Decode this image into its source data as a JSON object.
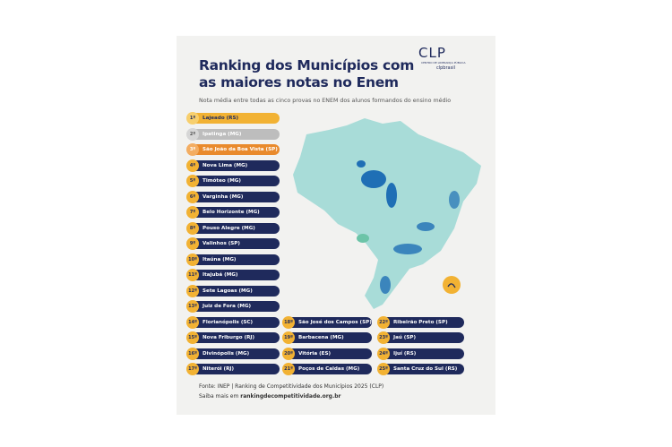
{
  "header": {
    "title_line1": "Ranking dos Municípios com",
    "title_line2": "as maiores notas no Enem",
    "subtitle": "Nota média entre todas as cinco provas no ENEM dos alunos formandos do ensino médio"
  },
  "logo": {
    "brand": "CLP",
    "tagline": "CENTRO DE LIDERANÇA PÚBLICA",
    "social": "clpbrasil"
  },
  "ranking": [
    {
      "rank": "1º",
      "name": "Lajeado (RS)"
    },
    {
      "rank": "2º",
      "name": "Ipatinga (MG)"
    },
    {
      "rank": "3º",
      "name": "São João da Boa Vista (SP)"
    },
    {
      "rank": "4º",
      "name": "Nova Lima (MG)"
    },
    {
      "rank": "5º",
      "name": "Timóteo (MG)"
    },
    {
      "rank": "6º",
      "name": "Varginha (MG)"
    },
    {
      "rank": "7º",
      "name": "Belo Horizonte (MG)"
    },
    {
      "rank": "8º",
      "name": "Pouso Alegre (MG)"
    },
    {
      "rank": "9º",
      "name": "Valinhos (SP)"
    },
    {
      "rank": "10º",
      "name": "Itaúna (MG)"
    },
    {
      "rank": "11º",
      "name": "Itajubá (MG)"
    },
    {
      "rank": "12º",
      "name": "Sete Lagoas (MG)"
    },
    {
      "rank": "13º",
      "name": "Juiz de Fora (MG)"
    },
    {
      "rank": "14º",
      "name": "Florianópolis (SC)"
    },
    {
      "rank": "15º",
      "name": "Nova Friburgo (RJ)"
    },
    {
      "rank": "16º",
      "name": "Divinópolis (MG)"
    },
    {
      "rank": "17º",
      "name": "Niterói (RJ)"
    },
    {
      "rank": "18º",
      "name": "São José dos Campos (SP)"
    },
    {
      "rank": "19º",
      "name": "Barbacena (MG)"
    },
    {
      "rank": "20º",
      "name": "Vitória (ES)"
    },
    {
      "rank": "21º",
      "name": "Poços de Caldas (MG)"
    },
    {
      "rank": "22º",
      "name": "Ribeirão Preto (SP)"
    },
    {
      "rank": "23º",
      "name": "Jaú (SP)"
    },
    {
      "rank": "24º",
      "name": "Ijuí (RS)"
    },
    {
      "rank": "25º",
      "name": "Santa Cruz do Sul (RS)"
    }
  ],
  "footer": {
    "source": "Fonte: INEP | Ranking de Competitividade dos Municípios 2025 (CLP)",
    "more_prefix": "Saiba mais em",
    "more_link": "rankingdecompetitividade.org.br"
  }
}
